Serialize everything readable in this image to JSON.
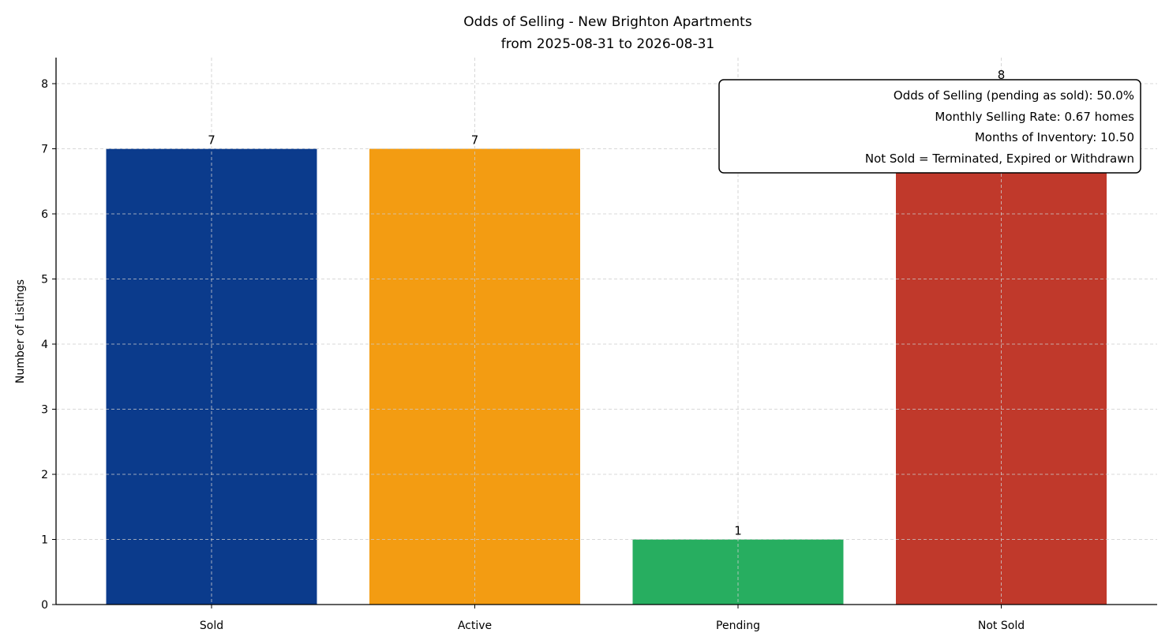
{
  "chart_data": {
    "type": "bar",
    "title": "Odds of Selling - New Brighton Apartments",
    "subtitle": "from 2025-08-31 to 2026-08-31",
    "xlabel": "",
    "ylabel": "Number of Listings",
    "categories": [
      "Sold",
      "Active",
      "Pending",
      "Not Sold"
    ],
    "values": [
      7,
      7,
      1,
      8
    ],
    "colors": [
      "#0b3b8c",
      "#f39c12",
      "#27ae60",
      "#c0392b"
    ],
    "ylim": [
      0,
      8.4
    ],
    "yticks": [
      0,
      1,
      2,
      3,
      4,
      5,
      6,
      7,
      8
    ],
    "grid": true,
    "annotation": {
      "placement": "top-right",
      "lines": [
        "Odds of Selling (pending as sold): 50.0%",
        "Monthly Selling Rate: 0.67 homes",
        "Months of Inventory: 10.50",
        "Not Sold = Terminated, Expired or Withdrawn"
      ]
    }
  }
}
